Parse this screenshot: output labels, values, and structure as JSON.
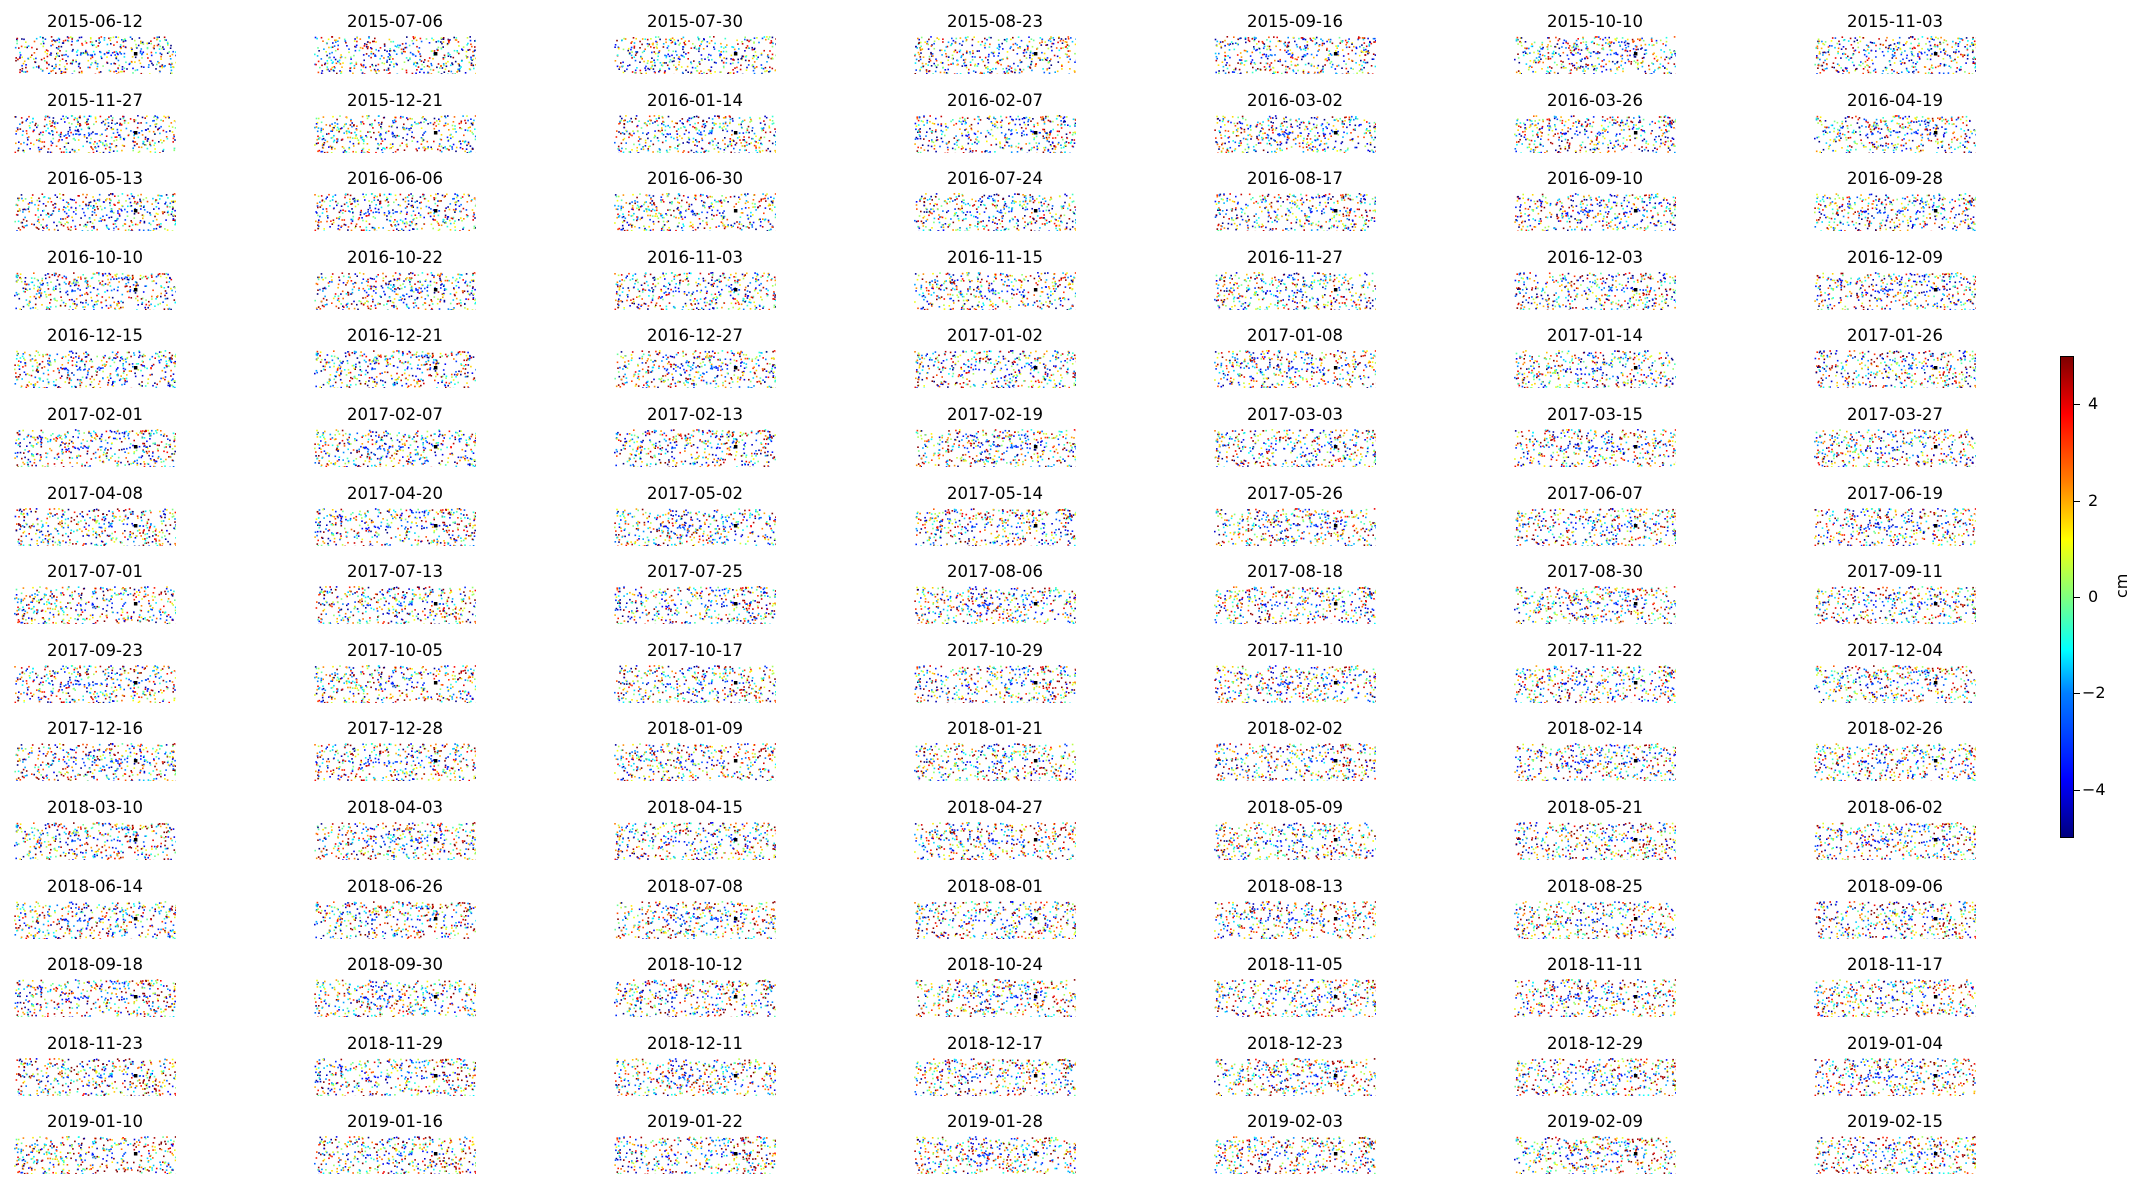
{
  "chart_data": {
    "type": "scatter",
    "description_kind": "small-multiples",
    "panel_titles": [
      "2015-06-12",
      "2015-07-06",
      "2015-07-30",
      "2015-08-23",
      "2015-09-16",
      "2015-10-10",
      "2015-11-03",
      "2015-11-27",
      "2015-12-21",
      "2016-01-14",
      "2016-02-07",
      "2016-03-02",
      "2016-03-26",
      "2016-04-19",
      "2016-05-13",
      "2016-06-06",
      "2016-06-30",
      "2016-07-24",
      "2016-08-17",
      "2016-09-10",
      "2016-09-28",
      "2016-10-10",
      "2016-10-22",
      "2016-11-03",
      "2016-11-15",
      "2016-11-27",
      "2016-12-03",
      "2016-12-09",
      "2016-12-15",
      "2016-12-21",
      "2016-12-27",
      "2017-01-02",
      "2017-01-08",
      "2017-01-14",
      "2017-01-26",
      "2017-02-01",
      "2017-02-07",
      "2017-02-13",
      "2017-02-19",
      "2017-03-03",
      "2017-03-15",
      "2017-03-27",
      "2017-04-08",
      "2017-04-20",
      "2017-05-02",
      "2017-05-14",
      "2017-05-26",
      "2017-06-07",
      "2017-06-19",
      "2017-07-01",
      "2017-07-13",
      "2017-07-25",
      "2017-08-06",
      "2017-08-18",
      "2017-08-30",
      "2017-09-11",
      "2017-09-23",
      "2017-10-05",
      "2017-10-17",
      "2017-10-29",
      "2017-11-10",
      "2017-11-22",
      "2017-12-04",
      "2017-12-16",
      "2017-12-28",
      "2018-01-09",
      "2018-01-21",
      "2018-02-02",
      "2018-02-14",
      "2018-02-26",
      "2018-03-10",
      "2018-04-03",
      "2018-04-15",
      "2018-04-27",
      "2018-05-09",
      "2018-05-21",
      "2018-06-02",
      "2018-06-14",
      "2018-06-26",
      "2018-07-08",
      "2018-08-01",
      "2018-08-13",
      "2018-08-25",
      "2018-09-06",
      "2018-09-18",
      "2018-09-30",
      "2018-10-12",
      "2018-10-24",
      "2018-11-05",
      "2018-11-11",
      "2018-11-17",
      "2018-11-23",
      "2018-11-29",
      "2018-12-11",
      "2018-12-17",
      "2018-12-23",
      "2018-12-29",
      "2019-01-04",
      "2019-01-10",
      "2019-01-16",
      "2019-01-22",
      "2019-01-28",
      "2019-02-03",
      "2019-02-09",
      "2019-02-15"
    ],
    "grid_columns": 7,
    "grid_rows": 15,
    "colormap": "jet",
    "colorbar": {
      "label": "cm",
      "vmin": -5,
      "vmax": 5,
      "ticks": [
        4,
        2,
        0,
        -2,
        -4
      ],
      "tick_labels": [
        "4",
        "2",
        "0",
        "−2",
        "−4"
      ]
    },
    "axes_visible": false,
    "reference_point_color": "#000000"
  }
}
